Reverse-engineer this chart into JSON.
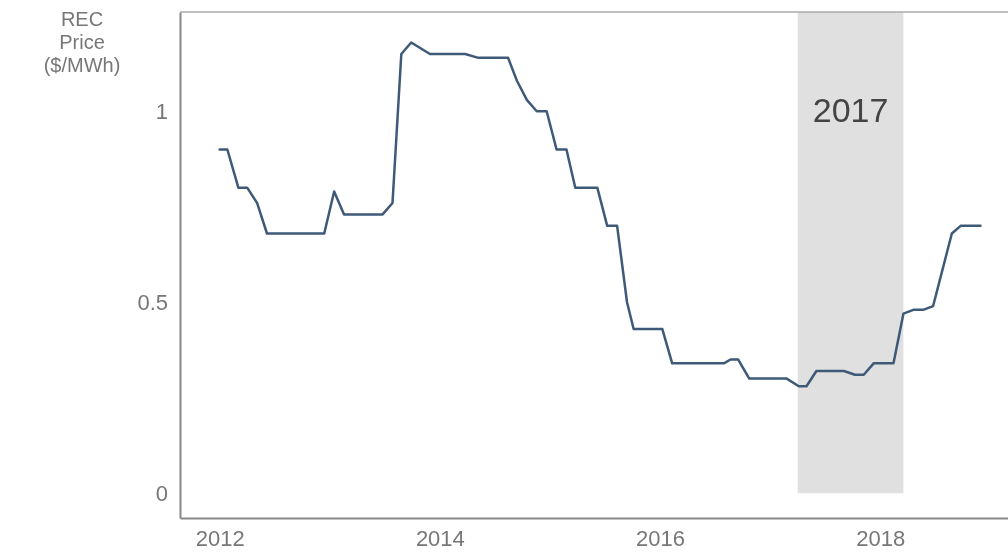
{
  "chart_data": {
    "type": "line",
    "ylabel": "REC Price ($/MWh)",
    "xlim": [
      2011.64,
      2019.16
    ],
    "xticks": [
      2012,
      2014,
      2016,
      2018
    ],
    "ylim": [
      -0.065,
      1.26
    ],
    "yticks": [
      0,
      0.5,
      1
    ],
    "grid": false,
    "line_style": "solid",
    "marker": "none",
    "bands": [
      {
        "axis": "x",
        "from": 2017.25,
        "to": 2018.21,
        "label": "2017",
        "color": "#e0e0e0"
      }
    ],
    "series": [
      {
        "color": "#3e5a78",
        "x": [
          2012.0,
          2012.07,
          2012.17,
          2012.25,
          2012.34,
          2012.43,
          2012.95,
          2013.04,
          2013.13,
          2013.48,
          2013.57,
          2013.65,
          2013.74,
          2013.91,
          2014.23,
          2014.35,
          2014.62,
          2014.7,
          2014.79,
          2014.88,
          2014.97,
          2015.06,
          2015.15,
          2015.23,
          2015.43,
          2015.52,
          2015.61,
          2015.7,
          2015.76,
          2016.02,
          2016.11,
          2016.58,
          2016.64,
          2016.71,
          2016.81,
          2017.15,
          2017.26,
          2017.33,
          2017.42,
          2017.67,
          2017.77,
          2017.85,
          2017.94,
          2018.12,
          2018.21,
          2018.3,
          2018.39,
          2018.48,
          2018.65,
          2018.73,
          2018.91
        ],
        "values": [
          0.9,
          0.9,
          0.8,
          0.8,
          0.76,
          0.68,
          0.68,
          0.79,
          0.73,
          0.73,
          0.76,
          1.15,
          1.18,
          1.15,
          1.15,
          1.14,
          1.14,
          1.08,
          1.03,
          1.0,
          1.0,
          0.9,
          0.9,
          0.8,
          0.8,
          0.7,
          0.7,
          0.5,
          0.43,
          0.43,
          0.34,
          0.34,
          0.35,
          0.35,
          0.3,
          0.3,
          0.28,
          0.28,
          0.32,
          0.32,
          0.31,
          0.31,
          0.34,
          0.34,
          0.47,
          0.48,
          0.48,
          0.49,
          0.68,
          0.7,
          0.7
        ]
      }
    ]
  }
}
